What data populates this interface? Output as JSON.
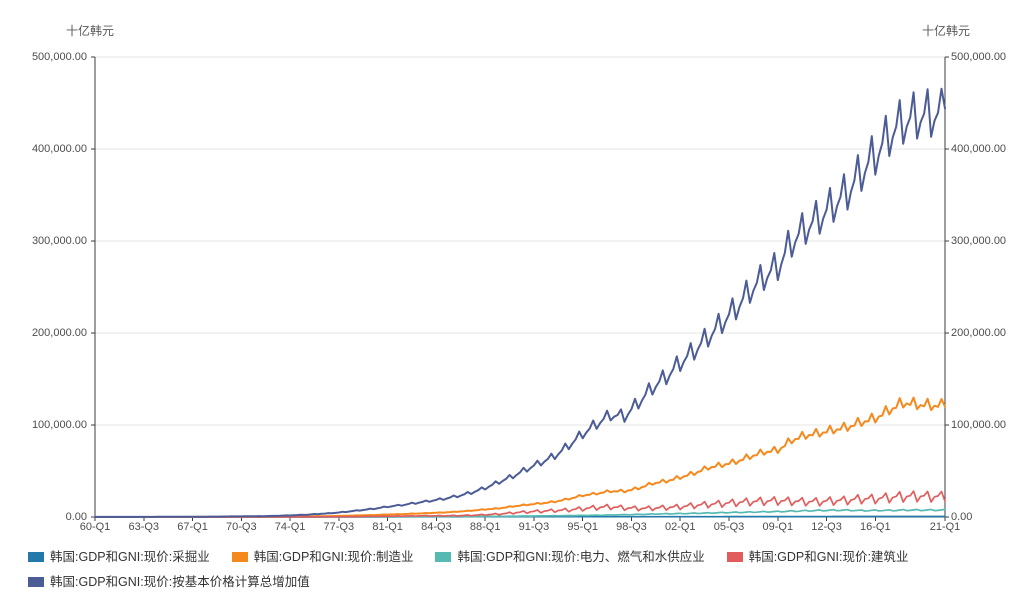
{
  "units": {
    "left": "十亿韩元",
    "right": "十亿韩元"
  },
  "colors": {
    "background": "#ffffff",
    "axis": "#3c3c3c",
    "grid": "#e4e4e4",
    "tick_label": "#4d4d4d",
    "unit_label": "#595959",
    "legend_text": "#333333"
  },
  "chart_data": {
    "type": "line",
    "frequency": "quarterly",
    "title": "",
    "grid": "horizontal",
    "legend_position": "bottom-left",
    "x_axis": {
      "start": "1960-Q1",
      "end": "2021-Q1",
      "total_points": 245,
      "tick_labels": [
        {
          "label": "60-Q1",
          "t": 0
        },
        {
          "label": "63-Q3",
          "t": 14
        },
        {
          "label": "67-Q1",
          "t": 28
        },
        {
          "label": "70-Q3",
          "t": 42
        },
        {
          "label": "74-Q1",
          "t": 56
        },
        {
          "label": "77-Q3",
          "t": 70
        },
        {
          "label": "81-Q1",
          "t": 84
        },
        {
          "label": "84-Q3",
          "t": 98
        },
        {
          "label": "88-Q1",
          "t": 112
        },
        {
          "label": "91-Q3",
          "t": 126
        },
        {
          "label": "95-Q1",
          "t": 140
        },
        {
          "label": "98-Q3",
          "t": 154
        },
        {
          "label": "02-Q1",
          "t": 168
        },
        {
          "label": "05-Q3",
          "t": 182
        },
        {
          "label": "09-Q1",
          "t": 196
        },
        {
          "label": "12-Q3",
          "t": 210
        },
        {
          "label": "16-Q1",
          "t": 224
        },
        {
          "label": "21-Q1",
          "t": 244
        }
      ]
    },
    "y_axis": {
      "min": 0,
      "max": 500000,
      "unit": "十亿韩元",
      "sides": [
        "left",
        "right"
      ],
      "tick_values": [
        0,
        100000,
        200000,
        300000,
        400000,
        500000
      ],
      "tick_labels": [
        "0.00",
        "100,000.00",
        "200,000.00",
        "300,000.00",
        "400,000.00",
        "500,000.00"
      ]
    },
    "note": "Quarterly level series 1960-Q1 to 2021-Q1 (billion KRW). Plotted quarterly points are reconstructed as annual_avg value for each year 1960-2020 (geometrically interpolated within the year) multiplied by seasonal_factors [Q1,Q2,Q3,Q4]; the final 2021-Q1 point is value_2021_q1.",
    "series": [
      {
        "key": "mining",
        "name": "韩国:GDP和GNI:现价:采掘业",
        "color": "#2379a9",
        "stroke_width": 1.7,
        "seasonal_factors": [
          1.0,
          1.0,
          1.0,
          1.0
        ],
        "annual_avg": [
          3,
          4,
          5,
          7,
          9,
          10,
          12,
          14,
          15,
          16,
          17,
          19,
          21,
          25,
          32,
          45,
          55,
          65,
          80,
          100,
          130,
          150,
          170,
          195,
          220,
          250,
          265,
          280,
          295,
          310,
          320,
          325,
          325,
          328,
          330,
          330,
          332,
          335,
          330,
          335,
          340,
          345,
          350,
          355,
          365,
          380,
          390,
          400,
          420,
          430,
          450,
          470,
          480,
          490,
          500,
          520,
          530,
          540,
          550,
          555,
          560
        ],
        "value_2021_q1": 560
      },
      {
        "key": "manufacturing",
        "name": "韩国:GDP和GNI:现价:制造业",
        "color": "#f5891d",
        "stroke_width": 2,
        "seasonal_factors": [
          0.96,
          1.0,
          0.99,
          1.06
        ],
        "annual_avg": [
          8,
          10,
          12,
          18,
          26,
          32,
          42,
          55,
          74,
          100,
          130,
          160,
          205,
          290,
          420,
          560,
          790,
          1020,
          1380,
          1780,
          2190,
          2740,
          3100,
          3700,
          4300,
          4900,
          5800,
          6900,
          8300,
          9400,
          11500,
          13300,
          14800,
          16700,
          19700,
          23400,
          25500,
          28100,
          28000,
          31200,
          36500,
          39000,
          43000,
          47500,
          53500,
          56500,
          60000,
          65600,
          70500,
          72500,
          83500,
          88500,
          91000,
          94500,
          97500,
          103000,
          107000,
          116000,
          124000,
          122000,
          121000
        ],
        "value_2021_q1": 120000
      },
      {
        "key": "electricity-gas-water",
        "name": "韩国:GDP和GNI:现价:电力、燃气和水供应业",
        "color": "#56b9b2",
        "stroke_width": 1.7,
        "seasonal_factors": [
          1.08,
          0.93,
          0.96,
          1.03
        ],
        "annual_avg": [
          1,
          1,
          2,
          2,
          3,
          3,
          4,
          5,
          7,
          9,
          10,
          13,
          16,
          20,
          25,
          30,
          45,
          60,
          85,
          115,
          150,
          200,
          250,
          310,
          380,
          450,
          520,
          600,
          700,
          800,
          900,
          1050,
          1250,
          1400,
          1550,
          1700,
          1950,
          2200,
          2500,
          2800,
          3200,
          3500,
          3700,
          4000,
          4350,
          4700,
          5000,
          5300,
          5600,
          5900,
          6300,
          6700,
          7100,
          7300,
          7400,
          7000,
          7100,
          7200,
          7400,
          7500,
          7500
        ],
        "value_2021_q1": 8300
      },
      {
        "key": "construction",
        "name": "韩国:GDP和GNI:现价:建筑业",
        "color": "#e15d5d",
        "stroke_width": 1.7,
        "seasonal_factors": [
          0.74,
          1.0,
          1.04,
          1.26
        ],
        "annual_avg": [
          2,
          3,
          4,
          5,
          7,
          8,
          10,
          14,
          20,
          28,
          35,
          42,
          50,
          65,
          90,
          110,
          160,
          230,
          350,
          500,
          700,
          850,
          1000,
          1200,
          1280,
          1350,
          1500,
          1800,
          2500,
          3200,
          4500,
          5500,
          6200,
          6900,
          7600,
          9000,
          10200,
          11000,
          9800,
          9200,
          9500,
          10200,
          11000,
          12500,
          13500,
          14500,
          15500,
          16500,
          17000,
          17500,
          17000,
          16500,
          16500,
          17500,
          18000,
          19500,
          19500,
          21000,
          22000,
          22500,
          22000
        ],
        "value_2021_q1": 17000
      },
      {
        "key": "total-gva",
        "name": "韩国:GDP和GNI:现价:按基本价格计算总增加值",
        "color": "#4c5c96",
        "stroke_width": 2,
        "seasonal_factors": [
          0.95,
          0.99,
          1.01,
          1.07
        ],
        "annual_avg": [
          56,
          68,
          79,
          113,
          158,
          180,
          232,
          288,
          371,
          486,
          630,
          765,
          961,
          1224,
          1764,
          2358,
          3256,
          4187,
          5654,
          7290,
          8939,
          11176,
          12890,
          15120,
          17399,
          19575,
          22635,
          26325,
          31500,
          38000,
          44300,
          52000,
          59000,
          66200,
          77600,
          90000,
          100800,
          110500,
          108900,
          124000,
          140000,
          152000,
          167000,
          180000,
          195000,
          210400,
          226100,
          245000,
          259700,
          271100,
          297700,
          312500,
          324000,
          337700,
          351700,
          373100,
          391700,
          413100,
          427100,
          432900,
          435000
        ],
        "value_2021_q1": 444000
      }
    ]
  }
}
